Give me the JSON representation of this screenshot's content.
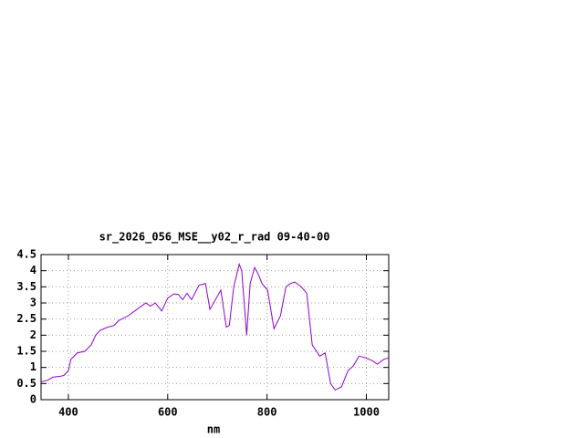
{
  "chart_data": {
    "type": "line",
    "title": "sr_2026_056_MSE__y02_r_rad 09-40-00",
    "x_label": "nm",
    "x": [
      345,
      358,
      369,
      382,
      391,
      400,
      405,
      418,
      433,
      446,
      455,
      464,
      479,
      492,
      501,
      520,
      538,
      556,
      565,
      575,
      588,
      600,
      612,
      621,
      630,
      639,
      648,
      663,
      676,
      685,
      696,
      707,
      718,
      724,
      733,
      744,
      749,
      759,
      766,
      775,
      782,
      790,
      801,
      814,
      827,
      838,
      847,
      856,
      869,
      880,
      891,
      906,
      917,
      928,
      937,
      950,
      963,
      974,
      985,
      998,
      1013,
      1022,
      1035,
      1045
    ],
    "series": [
      {
        "name": "rad",
        "color": "#9400d3",
        "values": [
          0.55,
          0.6,
          0.7,
          0.72,
          0.75,
          0.9,
          1.25,
          1.45,
          1.5,
          1.7,
          2.0,
          2.15,
          2.25,
          2.3,
          2.45,
          2.6,
          2.8,
          3.0,
          2.9,
          3.0,
          2.75,
          3.15,
          3.28,
          3.27,
          3.1,
          3.3,
          3.1,
          3.55,
          3.6,
          2.8,
          3.1,
          3.4,
          2.25,
          2.3,
          3.5,
          4.2,
          4.0,
          2.0,
          3.6,
          4.1,
          3.9,
          3.6,
          3.4,
          2.2,
          2.6,
          3.5,
          3.6,
          3.65,
          3.5,
          3.3,
          1.7,
          1.35,
          1.45,
          0.5,
          0.3,
          0.4,
          0.9,
          1.05,
          1.35,
          1.3,
          1.2,
          1.1,
          1.25,
          1.3
        ]
      }
    ],
    "xlim": [
      345,
      1045
    ],
    "xticks": [
      400,
      600,
      800,
      1000
    ],
    "ylim": [
      0,
      4.5
    ],
    "yticks": [
      0,
      0.5,
      1,
      1.5,
      2,
      2.5,
      3,
      3.5,
      4,
      4.5
    ],
    "grid": true
  }
}
